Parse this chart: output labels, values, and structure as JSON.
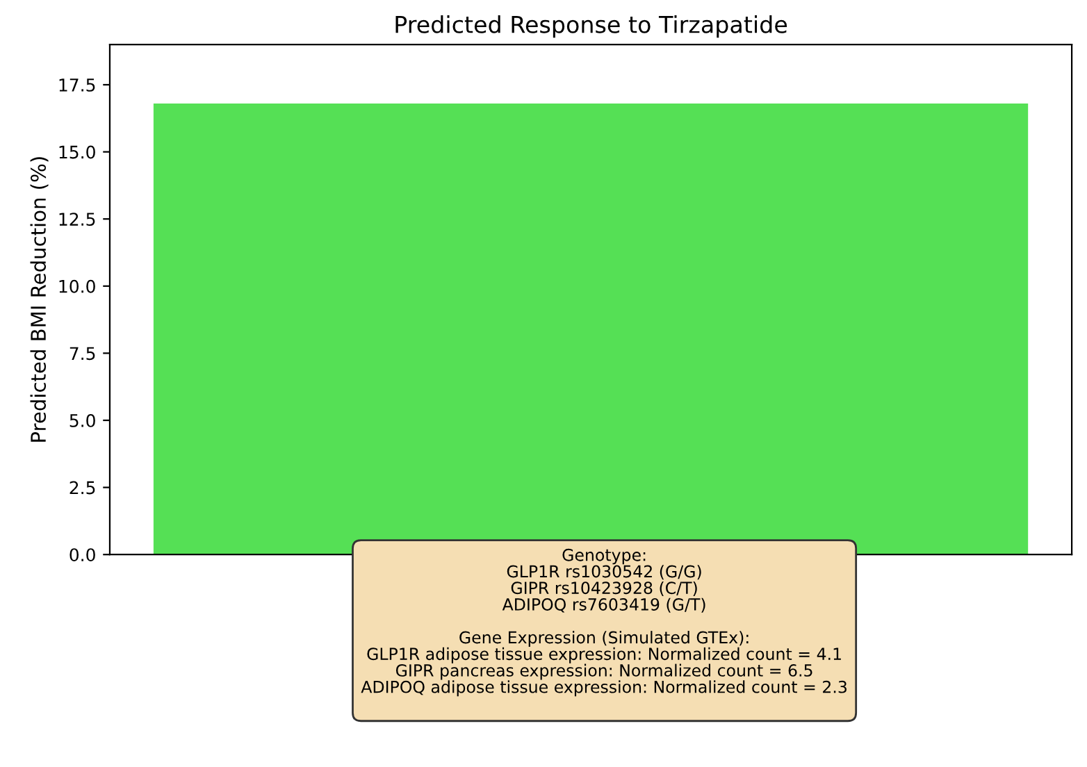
{
  "chart_data": {
    "type": "bar",
    "title": "Predicted Response to Tirzapatide",
    "ylabel": "Predicted BMI Reduction (%)",
    "categories": [
      null
    ],
    "values": [
      16.8
    ],
    "color": "#55e055",
    "ylim": [
      0,
      19
    ],
    "yticks": [
      {
        "value": 0,
        "label": "0.0"
      },
      2.5,
      {
        "value": 5,
        "label": "5.0"
      },
      7.5,
      {
        "value": 10,
        "label": "10.0"
      },
      12.5,
      {
        "value": 15,
        "label": "15.0"
      },
      17.5
    ],
    "grid": false,
    "legend": false,
    "annotations": [
      "Genotype:\nGLP1R rs1030542 (G/G)\nGIPR rs10423928 (C/T)\nADIPOQ rs7603419 (G/T)\n\nGene Expression (Simulated GTEx):\nGLP1R adipose tissue expression: Normalized count = 4.1\nGIPR pancreas expression: Normalized count = 6.5\nADIPOQ adipose tissue expression: Normalized count = 2.3\n"
    ]
  }
}
